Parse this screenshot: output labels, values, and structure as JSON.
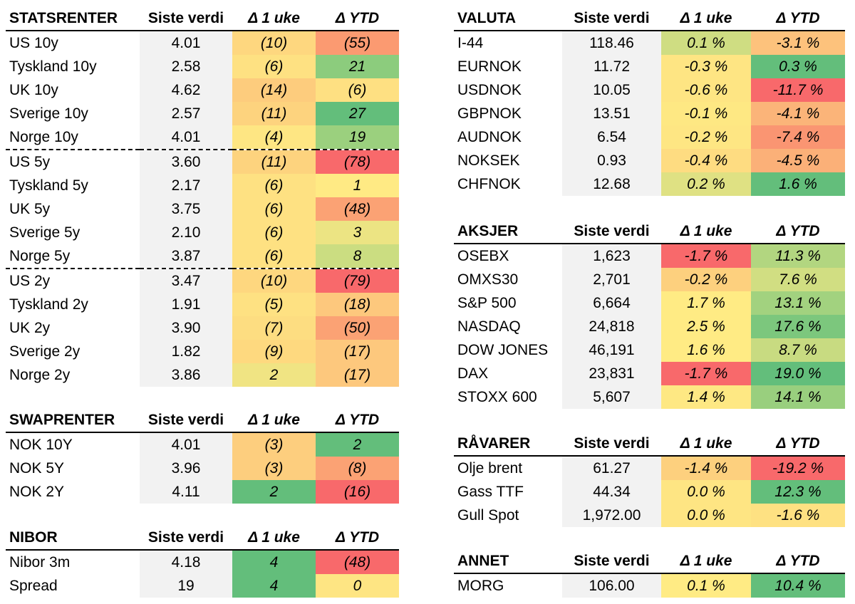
{
  "headers": {
    "value": "Siste verdi",
    "week": "Δ 1 uke",
    "ytd": "Δ YTD"
  },
  "statsrenter": {
    "title": "STATSRENTER",
    "rows": [
      {
        "name": "US 10y",
        "value": "4.01",
        "week": "(10)",
        "ytd": "(55)",
        "wc": "#fed77f",
        "yc": "#fb9a71"
      },
      {
        "name": "Tyskland 10y",
        "value": "2.58",
        "week": "(6)",
        "ytd": "21",
        "wc": "#fee182",
        "yc": "#8ccc7d"
      },
      {
        "name": "UK 10y",
        "value": "4.62",
        "week": "(14)",
        "ytd": "(6)",
        "wc": "#fdcc7d",
        "yc": "#fee082"
      },
      {
        "name": "Sverige 10y",
        "value": "2.57",
        "week": "(11)",
        "ytd": "27",
        "wc": "#fdd37e",
        "yc": "#63be7b"
      },
      {
        "name": "Norge 10y",
        "value": "4.01",
        "week": "(4)",
        "ytd": "19",
        "wc": "#fee683",
        "yc": "#9bd07e"
      },
      {
        "name": "US 5y",
        "value": "3.60",
        "week": "(11)",
        "ytd": "(78)",
        "wc": "#fdd37e",
        "yc": "#f8696b"
      },
      {
        "name": "Tyskland 5y",
        "value": "2.17",
        "week": "(6)",
        "ytd": "1",
        "wc": "#fee182",
        "yc": "#ffea84"
      },
      {
        "name": "UK 5y",
        "value": "3.75",
        "week": "(6)",
        "ytd": "(48)",
        "wc": "#fee182",
        "yc": "#fba274"
      },
      {
        "name": "Sverige 5y",
        "value": "2.10",
        "week": "(6)",
        "ytd": "3",
        "wc": "#fee182",
        "yc": "#ece483"
      },
      {
        "name": "Norge 5y",
        "value": "3.87",
        "week": "(6)",
        "ytd": "8",
        "wc": "#fee182",
        "yc": "#cbdd81"
      },
      {
        "name": "US 2y",
        "value": "3.47",
        "week": "(10)",
        "ytd": "(79)",
        "wc": "#fed77f",
        "yc": "#f8696b"
      },
      {
        "name": "Tyskland 2y",
        "value": "1.91",
        "week": "(5)",
        "ytd": "(18)",
        "wc": "#fee182",
        "yc": "#fdc87d"
      },
      {
        "name": "UK 2y",
        "value": "3.90",
        "week": "(7)",
        "ytd": "(50)",
        "wc": "#fddd81",
        "yc": "#fba274"
      },
      {
        "name": "Sverige 2y",
        "value": "1.82",
        "week": "(9)",
        "ytd": "(17)",
        "wc": "#fed97f",
        "yc": "#fdc87d"
      },
      {
        "name": "Norge 2y",
        "value": "3.86",
        "week": "2",
        "ytd": "(17)",
        "wc": "#f0e483",
        "yc": "#fdc87d"
      }
    ]
  },
  "swaprenter": {
    "title": "SWAPRENTER",
    "rows": [
      {
        "name": "NOK 10Y",
        "value": "4.01",
        "week": "(3)",
        "ytd": "2",
        "wc": "#fdce7e",
        "yc": "#63be7b"
      },
      {
        "name": "NOK 5Y",
        "value": "3.96",
        "week": "(3)",
        "ytd": "(8)",
        "wc": "#fdce7e",
        "yc": "#fba274"
      },
      {
        "name": "NOK 2Y",
        "value": "4.11",
        "week": "2",
        "ytd": "(16)",
        "wc": "#63be7b",
        "yc": "#f8696b"
      }
    ]
  },
  "nibor": {
    "title": "NIBOR",
    "rows": [
      {
        "name": "Nibor 3m",
        "value": "4.18",
        "week": "4",
        "ytd": "(48)",
        "wc": "#63be7b",
        "yc": "#f8696b"
      },
      {
        "name": "Spread",
        "value": "19",
        "week": "4",
        "ytd": "0",
        "wc": "#63be7b",
        "yc": "#fee583"
      }
    ]
  },
  "valuta": {
    "title": "VALUTA",
    "rows": [
      {
        "name": "I-44",
        "value": "118.46",
        "week": "0.1 %",
        "ytd": "-3.1 %",
        "wc": "#cfdd82",
        "yc": "#fdc27c"
      },
      {
        "name": "EURNOK",
        "value": "11.72",
        "week": "-0.3 %",
        "ytd": "0.3 %",
        "wc": "#fee583",
        "yc": "#63be7b"
      },
      {
        "name": "USDNOK",
        "value": "10.05",
        "week": "-0.6 %",
        "ytd": "-11.7 %",
        "wc": "#fee583",
        "yc": "#f8696b"
      },
      {
        "name": "GBPNOK",
        "value": "13.51",
        "week": "-0.1 %",
        "ytd": "-4.1 %",
        "wc": "#fee883",
        "yc": "#fbb479"
      },
      {
        "name": "AUDNOK",
        "value": "6.54",
        "week": "-0.2 %",
        "ytd": "-7.4 %",
        "wc": "#fee683",
        "yc": "#fa9572"
      },
      {
        "name": "NOKSEK",
        "value": "0.93",
        "week": "-0.4 %",
        "ytd": "-4.5 %",
        "wc": "#fedc81",
        "yc": "#fbb078"
      },
      {
        "name": "CHFNOK",
        "value": "12.68",
        "week": "0.2 %",
        "ytd": "1.6 %",
        "wc": "#dfe183",
        "yc": "#63be7b"
      }
    ]
  },
  "aksjer": {
    "title": "AKSJER",
    "rows": [
      {
        "name": "OSEBX",
        "value": "1,623",
        "week": "-1.7 %",
        "ytd": "11.3 %",
        "wc": "#f8696b",
        "yc": "#b2d680"
      },
      {
        "name": "OMXS30",
        "value": "2,701",
        "week": "-0.2 %",
        "ytd": "7.6 %",
        "wc": "#fdd07e",
        "yc": "#d1de82"
      },
      {
        "name": "S&P 500",
        "value": "6,664",
        "week": "1.7 %",
        "ytd": "13.1 %",
        "wc": "#ffeb84",
        "yc": "#a2d27f"
      },
      {
        "name": "NASDAQ",
        "value": "24,818",
        "week": "2.5 %",
        "ytd": "17.6 %",
        "wc": "#ffeb84",
        "yc": "#7cc77d"
      },
      {
        "name": "DOW JONES",
        "value": "46,191",
        "week": "1.6 %",
        "ytd": "8.7 %",
        "wc": "#ffeb84",
        "yc": "#c8db81"
      },
      {
        "name": "DAX",
        "value": "23,831",
        "week": "-1.7 %",
        "ytd": "19.0 %",
        "wc": "#f8696b",
        "yc": "#63be7b"
      },
      {
        "name": "STOXX 600",
        "value": "5,607",
        "week": "1.4 %",
        "ytd": "14.1 %",
        "wc": "#fee883",
        "yc": "#99cf7e"
      }
    ]
  },
  "ravarer": {
    "title": "RÅVARER",
    "rows": [
      {
        "name": "Olje brent",
        "value": "61.27",
        "week": "-1.4 %",
        "ytd": "-19.2 %",
        "wc": "#fdd07e",
        "yc": "#f8696b"
      },
      {
        "name": "Gass TTF",
        "value": "44.34",
        "week": "0.0 %",
        "ytd": "12.3 %",
        "wc": "#fee583",
        "yc": "#63be7b"
      },
      {
        "name": "Gull Spot",
        "value": "1,972.00",
        "week": "0.0 %",
        "ytd": "-1.6 %",
        "wc": "#fee583",
        "yc": "#fee182"
      }
    ]
  },
  "annet": {
    "title": "ANNET",
    "rows": [
      {
        "name": "MORG",
        "value": "106.00",
        "week": "0.1 %",
        "ytd": "10.4 %",
        "wc": "#ffeb84",
        "yc": "#63be7b"
      }
    ]
  }
}
